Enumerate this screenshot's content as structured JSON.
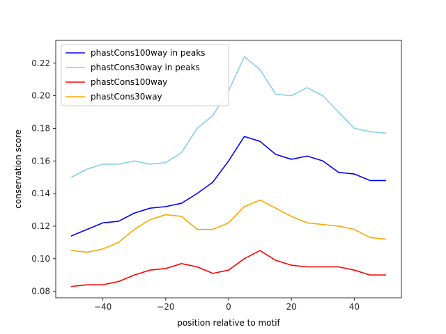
{
  "chart_data": {
    "type": "line",
    "title": "",
    "xlabel": "position relative to motif",
    "ylabel": "conservation score",
    "xlim": [
      -55,
      55
    ],
    "ylim": [
      0.076,
      0.234
    ],
    "xticks": [
      -40,
      -20,
      0,
      20,
      40
    ],
    "xtick_labels": [
      "−40",
      "−20",
      "0",
      "20",
      "40"
    ],
    "yticks": [
      0.08,
      0.1,
      0.12,
      0.14,
      0.16,
      0.18,
      0.2,
      0.22
    ],
    "ytick_labels": [
      "0.08",
      "0.10",
      "0.12",
      "0.14",
      "0.16",
      "0.18",
      "0.20",
      "0.22"
    ],
    "grid": false,
    "legend_position": "top-left",
    "x": [
      -50,
      -45,
      -40,
      -35,
      -30,
      -25,
      -20,
      -15,
      -10,
      -5,
      0,
      5,
      10,
      15,
      20,
      25,
      30,
      35,
      40,
      45,
      50
    ],
    "series": [
      {
        "name": "phastCons100way in peaks",
        "color": "#0000ff",
        "values": [
          0.114,
          0.118,
          0.122,
          0.123,
          0.128,
          0.131,
          0.132,
          0.134,
          0.14,
          0.147,
          0.16,
          0.175,
          0.172,
          0.164,
          0.161,
          0.163,
          0.16,
          0.153,
          0.152,
          0.148,
          0.148
        ]
      },
      {
        "name": "phastCons30way in peaks",
        "color": "#87ceeb",
        "values": [
          0.15,
          0.155,
          0.158,
          0.158,
          0.16,
          0.158,
          0.159,
          0.165,
          0.18,
          0.188,
          0.203,
          0.224,
          0.216,
          0.201,
          0.2,
          0.205,
          0.2,
          0.19,
          0.18,
          0.178,
          0.177
        ]
      },
      {
        "name": "phastCons100way",
        "color": "#ff0000",
        "values": [
          0.083,
          0.084,
          0.084,
          0.086,
          0.09,
          0.093,
          0.094,
          0.097,
          0.095,
          0.091,
          0.093,
          0.1,
          0.105,
          0.099,
          0.096,
          0.095,
          0.095,
          0.095,
          0.093,
          0.09,
          0.09
        ]
      },
      {
        "name": "phastCons30way",
        "color": "#ffa500",
        "values": [
          0.105,
          0.104,
          0.106,
          0.11,
          0.118,
          0.124,
          0.127,
          0.126,
          0.118,
          0.118,
          0.122,
          0.132,
          0.136,
          0.131,
          0.126,
          0.122,
          0.121,
          0.12,
          0.118,
          0.113,
          0.112
        ]
      }
    ]
  }
}
